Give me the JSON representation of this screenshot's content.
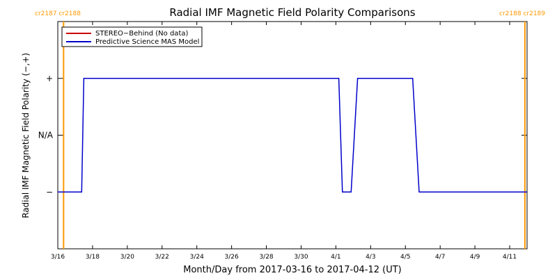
{
  "chart_data": {
    "type": "line",
    "title": "Radial IMF Magnetic Field Polarity Comparisons",
    "xlabel": "Month/Day from 2017-03-16 to 2017-04-12 (UT)",
    "ylabel": "Radial IMF Magnetic Field Polarity (−,+)",
    "xlim": [
      "2017-03-16",
      "2017-04-12"
    ],
    "ylim": [
      -2,
      2
    ],
    "x_ticks": [
      {
        "date": "2017-03-16",
        "label": "3/16"
      },
      {
        "date": "2017-03-18",
        "label": "3/18"
      },
      {
        "date": "2017-03-20",
        "label": "3/20"
      },
      {
        "date": "2017-03-22",
        "label": "3/22"
      },
      {
        "date": "2017-03-24",
        "label": "3/24"
      },
      {
        "date": "2017-03-26",
        "label": "3/26"
      },
      {
        "date": "2017-03-28",
        "label": "3/28"
      },
      {
        "date": "2017-03-30",
        "label": "3/30"
      },
      {
        "date": "2017-04-01",
        "label": "4/1"
      },
      {
        "date": "2017-04-03",
        "label": "4/3"
      },
      {
        "date": "2017-04-05",
        "label": "4/5"
      },
      {
        "date": "2017-04-07",
        "label": "4/7"
      },
      {
        "date": "2017-04-09",
        "label": "4/9"
      },
      {
        "date": "2017-04-11",
        "label": "4/11"
      }
    ],
    "y_ticks": [
      {
        "value": 1,
        "label": "+"
      },
      {
        "value": 0,
        "label": "N/A"
      },
      {
        "value": -1,
        "label": "−"
      }
    ],
    "carrington_markers": [
      {
        "date": "2017-03-16 08:00",
        "label": "cr2187 cr2188",
        "side": "left"
      },
      {
        "date": "2017-04-11 21:00",
        "label": "cr2188 cr2189",
        "side": "right"
      }
    ],
    "legend_position": "top-left",
    "series": [
      {
        "name": "STEREO−Behind (No data)",
        "color": "#cc0000",
        "x": [],
        "y": []
      },
      {
        "name": "Predictive Science MAS Model",
        "color": "#0000cc",
        "x": [
          "2017-03-16 00:00",
          "2017-03-17 09:00",
          "2017-03-17 12:00",
          "2017-04-01 04:00",
          "2017-04-01 09:00",
          "2017-04-01 21:00",
          "2017-04-02 06:00",
          "2017-04-05 10:00",
          "2017-04-05 19:00",
          "2017-04-12 00:00"
        ],
        "y": [
          -1,
          -1,
          1,
          1,
          -1,
          -1,
          1,
          1,
          -1,
          -1
        ]
      }
    ],
    "colors": {
      "marker": "#ff9900",
      "axis": "#000000"
    }
  }
}
